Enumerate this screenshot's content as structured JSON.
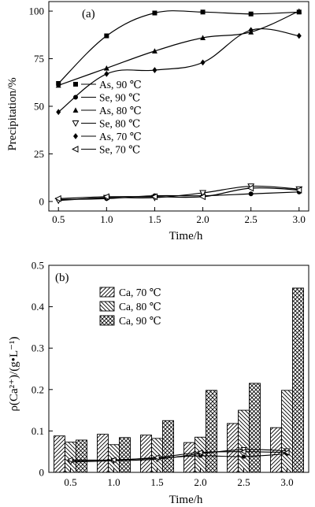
{
  "chart_data": [
    {
      "type": "scatter",
      "panel_label": "(a)",
      "xlabel": "Time/h",
      "ylabel": "Precipitation/%",
      "xlim": [
        0.4,
        3.1
      ],
      "ylim": [
        -5,
        105
      ],
      "xticks": [
        "0.5",
        "1.0",
        "1.5",
        "2.0",
        "2.5",
        "3.0"
      ],
      "yticks": [
        "0",
        "25",
        "50",
        "75",
        "100"
      ],
      "grid": false,
      "legend_position": "left-middle",
      "x": [
        0.5,
        1.0,
        1.5,
        2.0,
        2.5,
        3.0
      ],
      "series": [
        {
          "name": "As, 90 ℃",
          "marker": "square",
          "values": [
            62,
            87,
            99,
            99.5,
            98.5,
            99.5
          ]
        },
        {
          "name": "Se, 90 ℃",
          "marker": "circle",
          "values": [
            1,
            1.5,
            3,
            3,
            4,
            5
          ]
        },
        {
          "name": "As, 80 ℃",
          "marker": "triangle-up",
          "values": [
            61,
            70,
            79,
            86,
            89,
            100
          ]
        },
        {
          "name": "Se, 80 ℃",
          "marker": "triangle-down-open",
          "values": [
            0.5,
            2,
            2,
            4.5,
            8,
            6.5
          ]
        },
        {
          "name": "As, 70 ℃",
          "marker": "diamond",
          "values": [
            47,
            67,
            69,
            73,
            90,
            87
          ]
        },
        {
          "name": "Se, 70 ℃",
          "marker": "triangle-left-open",
          "values": [
            1.5,
            2.5,
            2.5,
            2.5,
            7,
            6
          ]
        }
      ]
    },
    {
      "type": "bar",
      "panel_label": "(b)",
      "xlabel": "Time/h",
      "ylabel": "ρ(Ca²⁺)/(g•L⁻¹)",
      "ylim": [
        0,
        0.5
      ],
      "yticks": [
        "0",
        "0.1",
        "0.2",
        "0.3",
        "0.4",
        "0.5"
      ],
      "categories": [
        "0.5",
        "1.0",
        "1.5",
        "2.0",
        "2.5",
        "3.0"
      ],
      "grid": false,
      "legend_position": "top-left",
      "series": [
        {
          "name": "Ca, 70 ℃",
          "pattern": "diagonal-up",
          "values": [
            0.088,
            0.092,
            0.09,
            0.072,
            0.118,
            0.108
          ]
        },
        {
          "name": "Ca, 80 ℃",
          "pattern": "diagonal-down",
          "values": [
            0.073,
            0.067,
            0.082,
            0.085,
            0.15,
            0.198
          ]
        },
        {
          "name": "Ca, 90 ℃",
          "pattern": "crosshatch",
          "values": [
            0.078,
            0.084,
            0.125,
            0.198,
            0.215,
            0.445
          ]
        }
      ],
      "overlay_lines": [
        {
          "marker": "circle",
          "values": [
            0.028,
            0.03,
            0.034,
            0.04,
            0.038,
            0.045
          ]
        },
        {
          "marker": "triangle-down-open",
          "values": [
            0.025,
            0.028,
            0.032,
            0.045,
            0.055,
            0.052
          ]
        },
        {
          "marker": "triangle-left-open",
          "values": [
            0.03,
            0.03,
            0.036,
            0.048,
            0.05,
            0.048
          ]
        }
      ]
    }
  ]
}
